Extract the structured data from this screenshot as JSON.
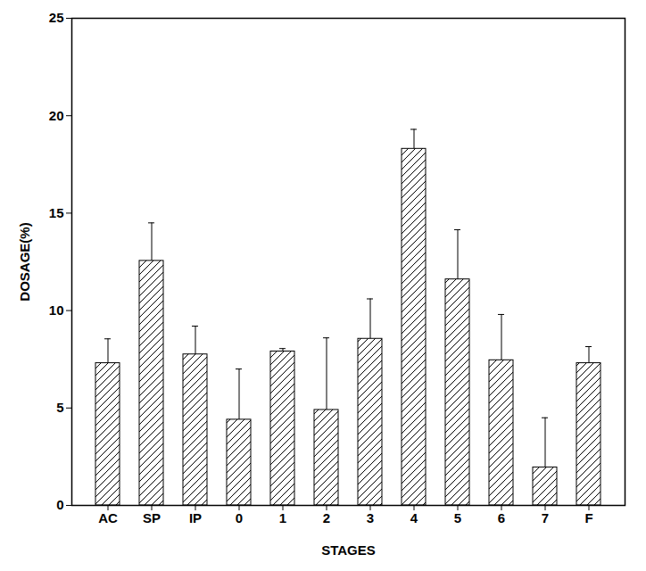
{
  "chart_data": {
    "type": "bar",
    "x_label": "STAGES",
    "y_label": "DOSAGE(%)",
    "categories": [
      "AC",
      "SP",
      "IP",
      "0",
      "1",
      "2",
      "3",
      "4",
      "5",
      "6",
      "7",
      "F"
    ],
    "values": [
      7.3,
      12.55,
      7.75,
      4.4,
      7.9,
      4.9,
      8.55,
      18.3,
      11.6,
      7.45,
      1.95,
      7.3
    ],
    "errors": [
      1.25,
      1.95,
      1.45,
      2.6,
      0.15,
      3.7,
      2.05,
      1.0,
      2.55,
      2.35,
      2.55,
      0.85
    ],
    "color": "#000000",
    "ylim": [
      0,
      25
    ],
    "yticks": [
      0,
      5,
      10,
      15,
      20,
      25
    ],
    "grid": false
  }
}
